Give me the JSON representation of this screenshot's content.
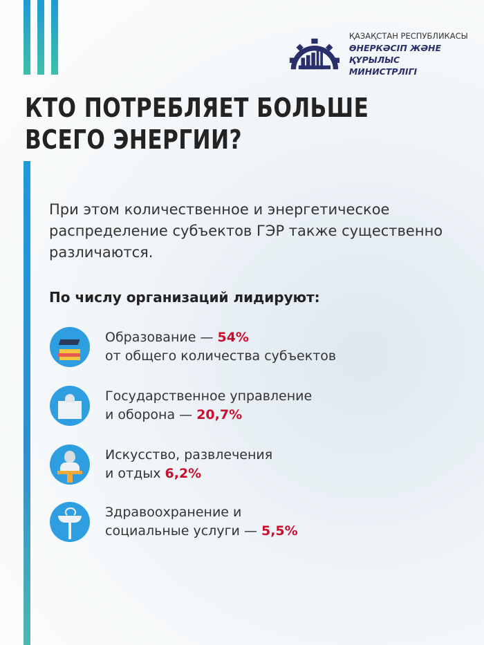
{
  "logo": {
    "line1": "ҚАЗАҚСТАН РЕСПУБЛИКАСЫ",
    "line2": "ӨНЕРКӘСІП ЖӘНЕ ҚҰРЫЛЫС",
    "line3": "МИНИСТРЛІГІ"
  },
  "title": {
    "line1": "КТО ПОТРЕБЛЯЕТ БОЛЬШЕ",
    "line2": "ВСЕГО ЭНЕРГИИ?"
  },
  "intro": "При этом количественное и энергетическое распределение субъектов ГЭР также существенно различаются.",
  "subheading": "По числу организаций лидируют:",
  "items": [
    {
      "icon": "education-icon",
      "line1": "Образование — ",
      "pct": "54%",
      "line2": "от общего количества субъектов"
    },
    {
      "icon": "government-building-icon",
      "line1": "Государственное управление",
      "line2": "и оборона — ",
      "pct": "20,7%"
    },
    {
      "icon": "art-bust-icon",
      "line1": "Искусство, развлечения",
      "line2": "и отдых  ",
      "pct": "6,2%"
    },
    {
      "icon": "medical-caduceus-icon",
      "line1": "Здравоохранение и",
      "line2": "социальные услуги  — ",
      "pct": "5,5%"
    }
  ],
  "colors": {
    "accent_blue": "#1e9ad6",
    "accent_red": "#c8102e",
    "logo_navy": "#2a2f6b"
  }
}
